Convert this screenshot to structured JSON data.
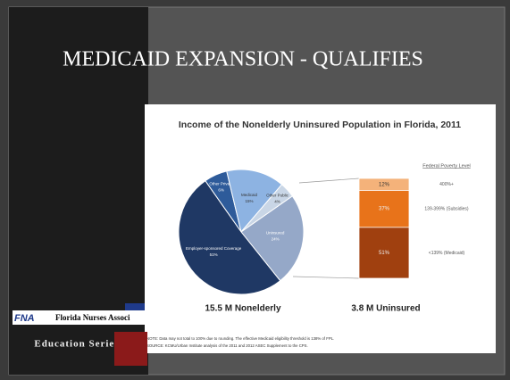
{
  "slide": {
    "title": "MEDICAID EXPANSION - QUALIFIES",
    "logo": "FNA",
    "organization": "Florida Nurses Associ",
    "series_name": "Education Series"
  },
  "chart_data": [
    {
      "type": "pie",
      "title": "Income of the Nonelderly Uninsured Population in Florida, 2011",
      "caption": "15.5 M Nonelderly",
      "categories": [
        "Other Private",
        "Medicaid",
        "Other Public",
        "Uninsured",
        "Employer-sponsored Coverage"
      ],
      "values": [
        6,
        15,
        4,
        24,
        51
      ],
      "value_labels": [
        "6%",
        "15%",
        "4%",
        "24%",
        "51%"
      ],
      "colors": [
        "#2e5b9a",
        "#8db3e2",
        "#c9d6e6",
        "#95a8c8",
        "#1f3864"
      ],
      "notes": [
        "NOTE: Data may not total to 100% due to rounding. The effective Medicaid eligibility threshold is 138% of FPL.",
        "SOURCE: KCMU/Urban Institute analysis of the 2011 and 2012 ASEC Supplement to the CPS."
      ]
    },
    {
      "type": "stacked_bar",
      "caption": "3.8 M Uninsured",
      "legend_title": "Federal Poverty Level",
      "categories": [
        "400%+",
        "139-399% (Subsidies)",
        "<139% (Medicaid)"
      ],
      "values": [
        12,
        37,
        51
      ],
      "value_labels": [
        "12%",
        "37%",
        "51%"
      ],
      "colors": [
        "#f4b27a",
        "#e8731a",
        "#a0400f"
      ]
    }
  ]
}
